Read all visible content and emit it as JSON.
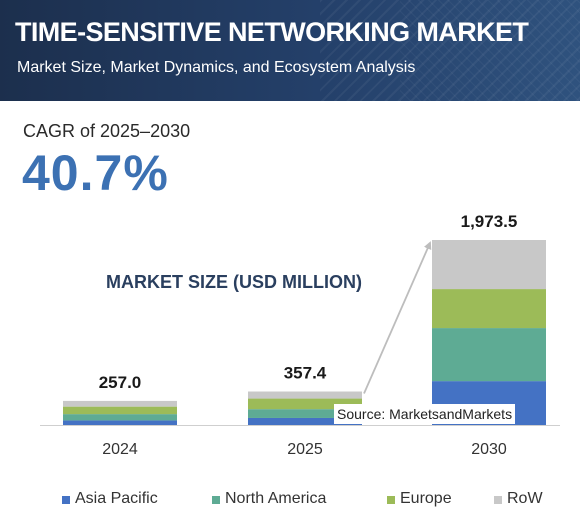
{
  "header": {
    "title": "TIME-SENSITIVE NETWORKING MARKET",
    "subtitle": "Market Size, Market Dynamics, and Ecosystem Analysis"
  },
  "cagr": {
    "label": "CAGR of 2025–2030",
    "value": "40.7%"
  },
  "source": "Source: MarketsandMarkets",
  "chart_data": {
    "type": "bar",
    "stacked": true,
    "title": "MARKET SIZE (USD MILLION)",
    "categories": [
      "2024",
      "2025",
      "2030"
    ],
    "totals": [
      257.0,
      357.4,
      1973.5
    ],
    "total_labels": [
      "257.0",
      "357.4",
      "1,973.5"
    ],
    "series": [
      {
        "name": "Asia Pacific",
        "color": "#4472c4",
        "values": [
          49,
          75,
          468
        ]
      },
      {
        "name": "North America",
        "color": "#5eab94",
        "values": [
          67,
          94,
          566
        ]
      },
      {
        "name": "Europe",
        "color": "#9cbb58",
        "values": [
          80,
          113,
          416
        ]
      },
      {
        "name": "RoW",
        "color": "#c8c8c8",
        "values": [
          61,
          75.4,
          523.5
        ]
      }
    ],
    "ylim": [
      0,
      1973.5
    ],
    "grid": false,
    "legend_position": "bottom",
    "annotation": "arrow from 2025 to 2030"
  }
}
